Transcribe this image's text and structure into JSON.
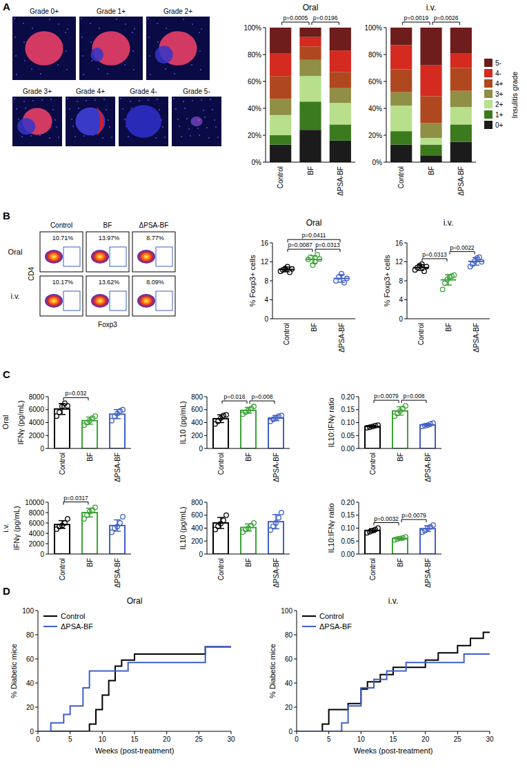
{
  "panel_labels": [
    "A",
    "B",
    "C",
    "D"
  ],
  "micrographs": {
    "labels": [
      "Grade 0+",
      "Grade 1+",
      "Grade 2+",
      "Grade 3+",
      "Grade 4+",
      "Grade 4-",
      "Grade 5-"
    ]
  },
  "flow": {
    "columns": [
      "Control",
      "BF",
      "ΔPSA-BF"
    ],
    "rows": [
      "Oral",
      "i.v."
    ],
    "x_label": "Foxp3",
    "y_label": "CD4",
    "gates": [
      [
        "10.71%",
        "13.97%",
        "8.77%"
      ],
      [
        "10.17%",
        "13.62%",
        "8.09%"
      ]
    ]
  },
  "panel_c_rows": [
    "Oral",
    "i.v."
  ],
  "chart_data": [
    {
      "type": "bar",
      "stacked": true,
      "title": "Oral",
      "categories": [
        "Control",
        "BF",
        "ΔPSA-BF"
      ],
      "ylim": [
        0,
        100
      ],
      "yticks": [
        {
          "value": 0,
          "label": "0%"
        },
        {
          "value": 20,
          "label": "20%"
        },
        {
          "value": 40,
          "label": "40%"
        },
        {
          "value": 60,
          "label": "60%"
        },
        {
          "value": 80,
          "label": "80%"
        },
        {
          "value": 100,
          "label": "100%"
        }
      ],
      "series": [
        {
          "name": "0+",
          "color": "#1b1b1b",
          "values": [
            13,
            24,
            16
          ]
        },
        {
          "name": "1+",
          "color": "#3c7a1f",
          "values": [
            7,
            21,
            12
          ]
        },
        {
          "name": "2+",
          "color": "#b8df8c",
          "values": [
            15,
            19,
            16
          ]
        },
        {
          "name": "3+",
          "color": "#8f8f45",
          "values": [
            12,
            12,
            11
          ]
        },
        {
          "name": "4+",
          "color": "#b0481f",
          "values": [
            17,
            10,
            12
          ]
        },
        {
          "name": "4-",
          "color": "#d42a20",
          "values": [
            17,
            7,
            16
          ]
        },
        {
          "name": "5-",
          "color": "#6e1c1c",
          "values": [
            19,
            7,
            17
          ]
        }
      ],
      "annotations": [
        {
          "between": [
            "Control",
            "BF"
          ],
          "text": "p=0.0005"
        },
        {
          "between": [
            "BF",
            "ΔPSA-BF"
          ],
          "text": "p=0.0196"
        }
      ]
    },
    {
      "type": "bar",
      "stacked": true,
      "title": "i.v.",
      "categories": [
        "Control",
        "BF",
        "ΔPSA-BF"
      ],
      "ylim": [
        0,
        100
      ],
      "yticks": [
        {
          "value": 0,
          "label": "0%"
        },
        {
          "value": 20,
          "label": "20%"
        },
        {
          "value": 40,
          "label": "40%"
        },
        {
          "value": 60,
          "label": "60%"
        },
        {
          "value": 80,
          "label": "80%"
        },
        {
          "value": 100,
          "label": "100%"
        }
      ],
      "series": [
        {
          "name": "0+",
          "color": "#1b1b1b",
          "values": [
            13,
            5,
            15
          ]
        },
        {
          "name": "1+",
          "color": "#3c7a1f",
          "values": [
            10,
            8,
            13
          ]
        },
        {
          "name": "2+",
          "color": "#b8df8c",
          "values": [
            19,
            5,
            13
          ]
        },
        {
          "name": "3+",
          "color": "#8f8f45",
          "values": [
            10,
            11,
            12
          ]
        },
        {
          "name": "4+",
          "color": "#b0481f",
          "values": [
            17,
            20,
            17
          ]
        },
        {
          "name": "4-",
          "color": "#d42a20",
          "values": [
            18,
            23,
            11
          ]
        },
        {
          "name": "5-",
          "color": "#6e1c1c",
          "values": [
            13,
            28,
            19
          ]
        }
      ],
      "legend": "right",
      "legend_title": "Insulitis grade",
      "annotations": [
        {
          "between": [
            "Control",
            "BF"
          ],
          "text": "p=0.0019"
        },
        {
          "between": [
            "BF",
            "ΔPSA-BF"
          ],
          "text": "p=0.0026"
        }
      ]
    },
    {
      "type": "dot",
      "title": "Oral",
      "categories": [
        "Control",
        "BF",
        "ΔPSA-BF"
      ],
      "colors": [
        "#000000",
        "#3aa335",
        "#3f5fc8"
      ],
      "ylabel": "% Foxp3+ cells",
      "ylim": [
        0,
        16
      ],
      "yticks": [
        0,
        4,
        8,
        12,
        16
      ],
      "points": [
        [
          10.0,
          10.3,
          10.6,
          11.0,
          9.8,
          10.5
        ],
        [
          12.5,
          13.0,
          11.3,
          12.0,
          13.5,
          12.6
        ],
        [
          8.0,
          8.8,
          9.5,
          7.6,
          8.5
        ]
      ],
      "values": [
        10.4,
        12.5,
        8.5
      ],
      "errors": [
        0.5,
        0.8,
        0.8
      ],
      "annotations": [
        {
          "between": [
            "Control",
            "BF"
          ],
          "text": "p=0.0087"
        },
        {
          "between": [
            "BF",
            "ΔPSA-BF"
          ],
          "text": "p=0.0313"
        },
        {
          "between": [
            "Control",
            "ΔPSA-BF"
          ],
          "text": "p=0.0411"
        }
      ]
    },
    {
      "type": "dot",
      "title": "i.v.",
      "categories": [
        "Control",
        "BF",
        "ΔPSA-BF"
      ],
      "colors": [
        "#000000",
        "#3aa335",
        "#3f5fc8"
      ],
      "ylabel": "% Foxp3+ cells",
      "ylim": [
        0,
        16
      ],
      "yticks": [
        0,
        4,
        8,
        12,
        16
      ],
      "points": [
        [
          10.3,
          10.8,
          11.2,
          11.5,
          10.0,
          11.0
        ],
        [
          6.2,
          7.5,
          8.3,
          8.8,
          9.0,
          9.2
        ],
        [
          11.0,
          11.5,
          12.2,
          12.8,
          13.0,
          12.0
        ]
      ],
      "values": [
        10.8,
        8.2,
        12.1
      ],
      "errors": [
        0.6,
        1.1,
        0.8
      ],
      "annotations": [
        {
          "between": [
            "Control",
            "BF"
          ],
          "text": "p=0.0313"
        },
        {
          "between": [
            "BF",
            "ΔPSA-BF"
          ],
          "text": "p=0.0022"
        }
      ]
    },
    {
      "type": "bar",
      "categories": [
        "Control",
        "BF",
        "ΔPSA-BF"
      ],
      "colors": [
        "#000000",
        "#3aa335",
        "#3f5fc8"
      ],
      "ylabel": "IFNγ (pg/mL)",
      "ylim": [
        0,
        8000
      ],
      "yticks": [
        0,
        2000,
        4000,
        6000,
        8000
      ],
      "points": [
        [
          5000,
          5600,
          6500,
          7000,
          6600
        ],
        [
          3600,
          4000,
          4300,
          4700,
          5000
        ],
        [
          4300,
          5000,
          5400,
          5800,
          6000
        ]
      ],
      "values": [
        6100,
        4300,
        5300
      ],
      "errors": [
        850,
        550,
        700
      ],
      "annotations": [
        {
          "between": [
            "Control",
            "BF"
          ],
          "text": "p=0.032"
        }
      ]
    },
    {
      "type": "bar",
      "categories": [
        "Control",
        "BF",
        "ΔPSA-BF"
      ],
      "colors": [
        "#000000",
        "#3aa335",
        "#3f5fc8"
      ],
      "ylabel": "IL10 (pg/mL)",
      "ylim": [
        0,
        800
      ],
      "yticks": [
        0,
        200,
        400,
        600,
        800
      ],
      "points": [
        [
          380,
          420,
          470,
          510,
          520
        ],
        [
          530,
          560,
          590,
          620,
          650
        ],
        [
          420,
          450,
          470,
          500,
          510
        ]
      ],
      "values": [
        460,
        590,
        470
      ],
      "errors": [
        60,
        45,
        40
      ],
      "annotations": [
        {
          "between": [
            "Control",
            "BF"
          ],
          "text": "p=0.016"
        },
        {
          "between": [
            "BF",
            "ΔPSA-BF"
          ],
          "text": "p=0.008"
        }
      ]
    },
    {
      "type": "bar",
      "categories": [
        "Control",
        "BF",
        "ΔPSA-BF"
      ],
      "colors": [
        "#000000",
        "#3aa335",
        "#3f5fc8"
      ],
      "ylabel": "IL10:IFNγ ratio",
      "ylim": [
        0,
        0.2
      ],
      "yticks": [
        {
          "value": 0,
          "label": "0.00"
        },
        {
          "value": 0.05,
          "label": "0.05"
        },
        {
          "value": 0.1,
          "label": "0.10"
        },
        {
          "value": 0.15,
          "label": "0.15"
        },
        {
          "value": 0.2,
          "label": "0.20"
        }
      ],
      "points": [
        [
          0.08,
          0.082,
          0.085,
          0.088,
          0.09
        ],
        [
          0.125,
          0.135,
          0.145,
          0.155,
          0.165
        ],
        [
          0.085,
          0.088,
          0.09,
          0.095,
          0.098
        ]
      ],
      "values": [
        0.085,
        0.145,
        0.091
      ],
      "errors": [
        0.004,
        0.016,
        0.005
      ],
      "annotations": [
        {
          "between": [
            "Control",
            "BF"
          ],
          "text": "p=0.0079"
        },
        {
          "between": [
            "BF",
            "ΔPSA-BF"
          ],
          "text": "p=0.008"
        }
      ]
    },
    {
      "type": "bar",
      "categories": [
        "Control",
        "BF",
        "ΔPSA-BF"
      ],
      "colors": [
        "#000000",
        "#3aa335",
        "#3f5fc8"
      ],
      "ylabel": "IFNγ (pg/mL)",
      "ylim": [
        0,
        10000
      ],
      "yticks": [
        0,
        2000,
        4000,
        6000,
        8000,
        10000
      ],
      "points": [
        [
          4800,
          5300,
          5500,
          6000,
          6800
        ],
        [
          6800,
          7500,
          8200,
          8500,
          9000
        ],
        [
          4200,
          5000,
          5300,
          6000,
          7200
        ]
      ],
      "values": [
        5700,
        8000,
        5500
      ],
      "errors": [
        750,
        850,
        1100
      ],
      "annotations": [
        {
          "between": [
            "Control",
            "BF"
          ],
          "text": "p=0.0317"
        }
      ]
    },
    {
      "type": "bar",
      "categories": [
        "Control",
        "BF",
        "ΔPSA-BF"
      ],
      "colors": [
        "#000000",
        "#3aa335",
        "#3f5fc8"
      ],
      "ylabel": "IL10 (pg/mL)",
      "ylim": [
        0,
        800
      ],
      "yticks": [
        0,
        200,
        400,
        600,
        800
      ],
      "points": [
        [
          380,
          430,
          470,
          520,
          600
        ],
        [
          340,
          380,
          400,
          440,
          480
        ],
        [
          370,
          430,
          480,
          560,
          640
        ]
      ],
      "values": [
        480,
        410,
        500
      ],
      "errors": [
        85,
        55,
        110
      ]
    },
    {
      "type": "bar",
      "categories": [
        "Control",
        "BF",
        "ΔPSA-BF"
      ],
      "colors": [
        "#000000",
        "#3aa335",
        "#3f5fc8"
      ],
      "ylabel": "IL10:IFNγ ratio",
      "ylim": [
        0,
        0.2
      ],
      "yticks": [
        {
          "value": 0,
          "label": "0.00"
        },
        {
          "value": 0.05,
          "label": "0.05"
        },
        {
          "value": 0.1,
          "label": "0.10"
        },
        {
          "value": 0.15,
          "label": "0.15"
        },
        {
          "value": 0.2,
          "label": "0.20"
        }
      ],
      "points": [
        [
          0.082,
          0.086,
          0.09,
          0.095,
          0.1
        ],
        [
          0.055,
          0.058,
          0.06,
          0.062,
          0.066
        ],
        [
          0.085,
          0.09,
          0.1,
          0.105,
          0.112
        ]
      ],
      "values": [
        0.091,
        0.06,
        0.098
      ],
      "errors": [
        0.007,
        0.004,
        0.011
      ],
      "annotations": [
        {
          "between": [
            "Control",
            "BF"
          ],
          "text": "p=0.0032"
        },
        {
          "between": [
            "BF",
            "ΔPSA-BF"
          ],
          "text": "p=0.0079"
        }
      ]
    },
    {
      "type": "line",
      "line_style": "step",
      "title": "Oral",
      "xlabel": "Weeks (post-treatment)",
      "ylabel": "% Diabetic mice",
      "xlim": [
        0,
        30
      ],
      "xticks": [
        0,
        5,
        10,
        15,
        20,
        25,
        30
      ],
      "ylim": [
        0,
        100
      ],
      "yticks": [
        0,
        20,
        40,
        60,
        80,
        100
      ],
      "legend": "top-left",
      "series": [
        {
          "name": "Control",
          "color": "#000000",
          "x": [
            0,
            8,
            9,
            10,
            11,
            12,
            13,
            15,
            26,
            30
          ],
          "values": [
            0,
            6,
            18,
            30,
            42,
            54,
            59,
            64,
            70,
            70
          ]
        },
        {
          "name": "ΔPSA-BF",
          "color": "#3f5fc8",
          "x": [
            0,
            2,
            4,
            5,
            7,
            8,
            14,
            26,
            30
          ],
          "values": [
            0,
            7,
            14,
            21,
            36,
            50,
            57,
            70,
            70
          ]
        }
      ]
    },
    {
      "type": "line",
      "line_style": "step",
      "title": "i.v.",
      "xlabel": "Weeks (post-treatment)",
      "ylabel": "% Diabetic mice",
      "xlim": [
        0,
        30
      ],
      "xticks": [
        0,
        5,
        10,
        15,
        20,
        25,
        30
      ],
      "ylim": [
        0,
        100
      ],
      "yticks": [
        0,
        20,
        40,
        60,
        80,
        100
      ],
      "legend": "top-left",
      "series": [
        {
          "name": "Control",
          "color": "#000000",
          "x": [
            0,
            4,
            5,
            8,
            10,
            11,
            13,
            15,
            20,
            22,
            25,
            27,
            29,
            30
          ],
          "values": [
            0,
            6,
            18,
            23,
            35,
            41,
            47,
            53,
            59,
            65,
            71,
            77,
            82,
            82
          ]
        },
        {
          "name": "ΔPSA-BF",
          "color": "#3f5fc8",
          "x": [
            0,
            7,
            8,
            10,
            12,
            14,
            17,
            26,
            30
          ],
          "values": [
            0,
            7,
            21,
            36,
            43,
            50,
            57,
            64,
            64
          ]
        }
      ]
    }
  ]
}
